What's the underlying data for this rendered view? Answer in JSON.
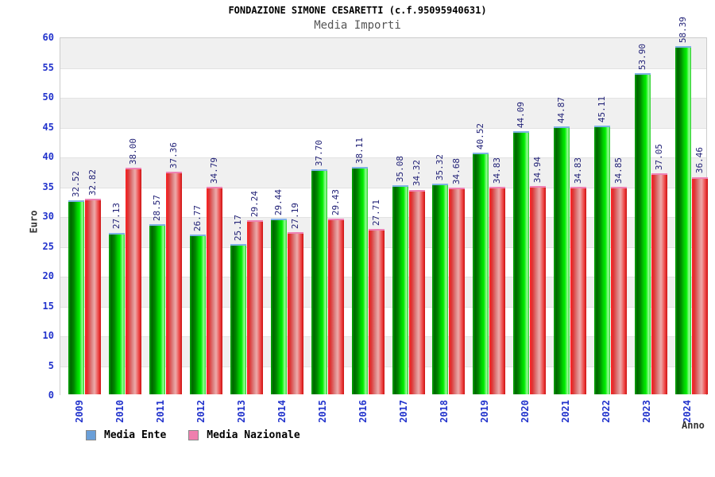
{
  "header": {
    "title": "FONDAZIONE SIMONE CESARETTI (c.f.95095940631)",
    "subtitle": "Media Importi"
  },
  "chart_data": {
    "type": "bar",
    "categories": [
      "2009",
      "2010",
      "2011",
      "2012",
      "2013",
      "2014",
      "2015",
      "2016",
      "2017",
      "2018",
      "2019",
      "2020",
      "2021",
      "2022",
      "2023",
      "2024"
    ],
    "series": [
      {
        "name": "Media Ente",
        "values": [
          32.52,
          27.13,
          28.57,
          26.77,
          25.17,
          29.44,
          37.7,
          38.11,
          35.08,
          35.32,
          40.52,
          44.09,
          44.87,
          45.11,
          53.9,
          58.39
        ]
      },
      {
        "name": "Media Nazionale",
        "values": [
          32.82,
          38.0,
          37.36,
          34.79,
          29.24,
          27.19,
          29.43,
          27.71,
          34.32,
          34.68,
          34.83,
          34.94,
          34.83,
          34.85,
          37.05,
          36.46
        ]
      }
    ],
    "title": "FONDAZIONE SIMONE CESARETTI (c.f.95095940631)",
    "subtitle": "Media Importi",
    "xlabel": "Anno",
    "ylabel": "Euro",
    "ylim": [
      0,
      60
    ],
    "ytick_step": 5,
    "value_label_decimals": 2,
    "grid": "horizontal-bands-alternating",
    "legend_position": "bottom"
  },
  "legend": {
    "swatch_colors": [
      "#6a9fd8",
      "#ef7fae"
    ]
  },
  "colors": {
    "bar_green_main": "#00cc00",
    "bar_green_cap": "#7fb2e5",
    "bar_red_main": "#ee3333",
    "bar_red_cap": "#ee82b4",
    "axis_tick_text": "#2233cc",
    "value_label_text": "#222277",
    "band_gray": "#f0f0f0",
    "band_white": "#ffffff",
    "plot_border": "#cccccc",
    "subtitle_text": "#555555"
  }
}
